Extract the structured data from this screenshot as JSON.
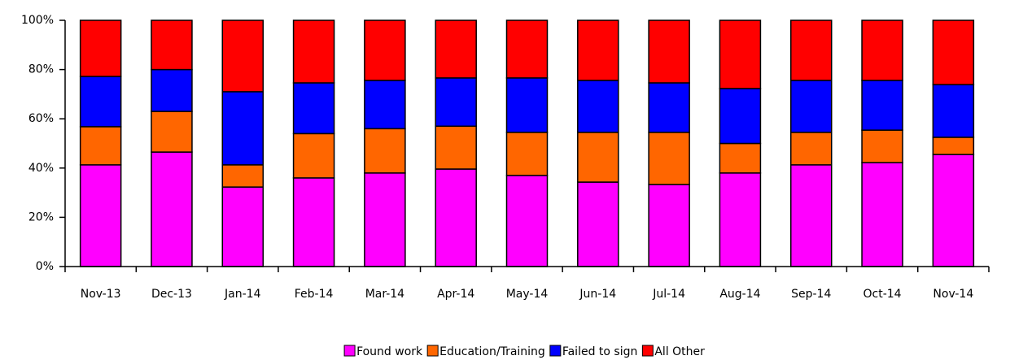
{
  "chart_data": {
    "type": "stacked-bar",
    "categories": [
      "Nov-13",
      "Dec-13",
      "Jan-14",
      "Feb-14",
      "Mar-14",
      "Apr-14",
      "May-14",
      "Jun-14",
      "Jul-14",
      "Aug-14",
      "Sep-14",
      "Oct-14",
      "Nov-14"
    ],
    "series": [
      {
        "name": "Found work",
        "color": "#ff00ff",
        "values": [
          41.3,
          46.5,
          32.3,
          36,
          38,
          39.6,
          37,
          34.3,
          33.3,
          38,
          41.3,
          42.2,
          45.5
        ]
      },
      {
        "name": "Education/Training",
        "color": "#ff6600",
        "values": [
          15.5,
          16.5,
          9,
          18,
          18,
          17.4,
          17.5,
          20.2,
          21.2,
          12,
          13.2,
          13.2,
          7
        ]
      },
      {
        "name": "Failed to sign",
        "color": "#0000ff",
        "values": [
          20.4,
          17,
          29.7,
          20.6,
          19.6,
          19.6,
          22.1,
          21.1,
          20.1,
          22.3,
          21.1,
          20.2,
          21.4
        ]
      },
      {
        "name": "All Other",
        "color": "#ff0000",
        "values": [
          22.8,
          20,
          29,
          25.4,
          24.4,
          23.4,
          23.4,
          24.4,
          25.4,
          27.7,
          24.4,
          24.4,
          26.1
        ]
      }
    ],
    "ylim": [
      0,
      100
    ],
    "yticks": [
      {
        "value": 0,
        "label": "0%"
      },
      {
        "value": 20,
        "label": "20%"
      },
      {
        "value": 40,
        "label": "40%"
      },
      {
        "value": 60,
        "label": "60%"
      },
      {
        "value": 80,
        "label": "80%"
      },
      {
        "value": 100,
        "label": "100%"
      }
    ],
    "grid": false,
    "legend": "bottom"
  }
}
